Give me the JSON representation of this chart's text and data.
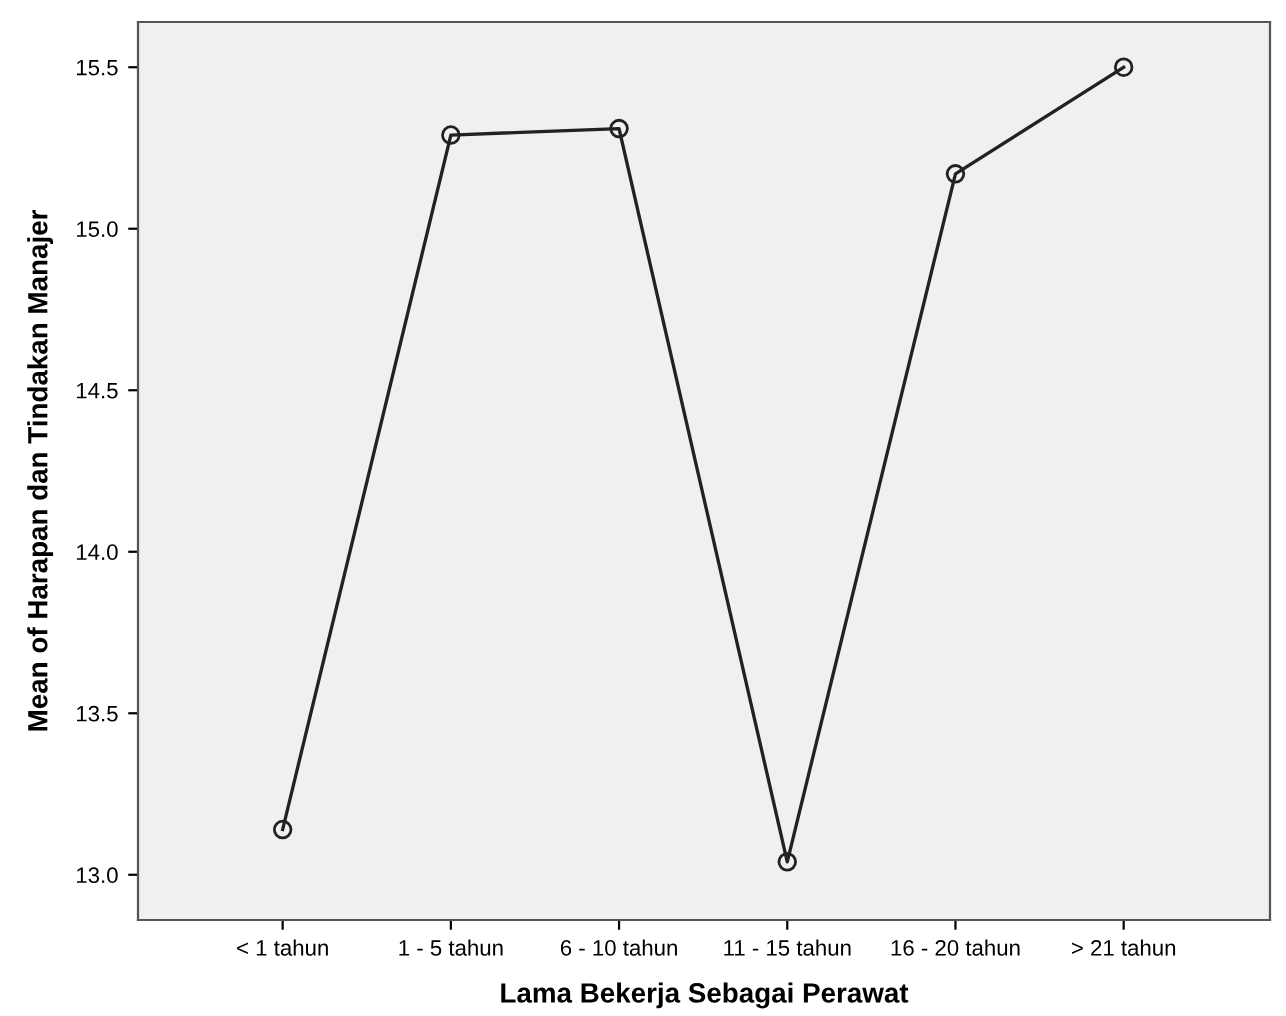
{
  "chart_data": {
    "type": "line",
    "xlabel": "Lama Bekerja Sebagai Perawat",
    "ylabel": "Mean of Harapan dan Tindakan Manajer",
    "categories": [
      "< 1 tahun",
      "1 - 5 tahun",
      "6 - 10 tahun",
      "11 - 15 tahun",
      "16 - 20 tahun",
      "> 21 tahun"
    ],
    "series": [
      {
        "color": "#222222",
        "values": [
          13.14,
          15.29,
          15.31,
          13.04,
          15.17,
          15.5
        ]
      }
    ],
    "ylim": [
      12.86,
      15.64
    ],
    "yticks": [
      {
        "value": 13,
        "label": "13.0"
      },
      13.5,
      {
        "value": 14,
        "label": "14.0"
      },
      14.5,
      {
        "value": 15,
        "label": "15.0"
      },
      15.5
    ],
    "marker": "circle",
    "line_style": "solid"
  }
}
